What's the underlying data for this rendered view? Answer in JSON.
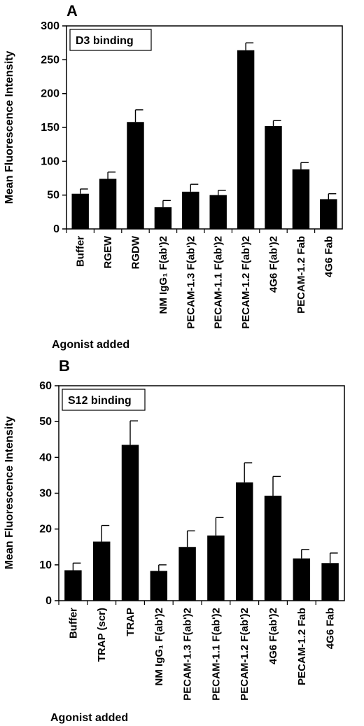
{
  "chart_data": [
    {
      "type": "bar",
      "panel": "A",
      "legend": "D3 binding",
      "ylabel": "Mean Fluorescence Intensity",
      "xlabel": "Agonist added",
      "ylim": [
        0,
        300
      ],
      "yticks": [
        "0",
        "50",
        "100",
        "150",
        "200",
        "250",
        "300"
      ],
      "categories": [
        "Buffer",
        "RGEW",
        "RGDW",
        "NM IgG₁ F(ab')2",
        "PECAM-1.3 F(ab')2",
        "PECAM-1.1 F(ab')2",
        "PECAM-1.2 F(ab')2",
        "4G6 F(ab')2",
        "PECAM-1.2 Fab",
        "4G6 Fab"
      ],
      "values": [
        52,
        74,
        158,
        32,
        55,
        50,
        264,
        152,
        88,
        44
      ],
      "errors": [
        7,
        10,
        18,
        10,
        11,
        7,
        11,
        8,
        10,
        8
      ]
    },
    {
      "type": "bar",
      "panel": "B",
      "legend": "S12 binding",
      "ylabel": "Mean Fluorescence Intensity",
      "xlabel": "Agonist added",
      "ylim": [
        0,
        60
      ],
      "yticks": [
        "0",
        "10",
        "20",
        "30",
        "40",
        "50",
        "60"
      ],
      "categories": [
        "Buffer",
        "TRAP (scr)",
        "TRAP",
        "NM IgG₁ F(ab')2",
        "PECAM-1.3 F(ab')2",
        "PECAM-1.1 F(ab')2",
        "PECAM-1.2 F(ab')2",
        "4G6 F(ab')2",
        "PECAM-1.2 Fab",
        "4G6 Fab"
      ],
      "values": [
        8.5,
        16.5,
        43.5,
        8.3,
        15.0,
        18.2,
        33.0,
        29.3,
        11.8,
        10.5
      ],
      "errors": [
        2.0,
        4.5,
        6.7,
        1.7,
        4.5,
        5.0,
        5.5,
        5.4,
        2.5,
        2.8
      ]
    }
  ]
}
